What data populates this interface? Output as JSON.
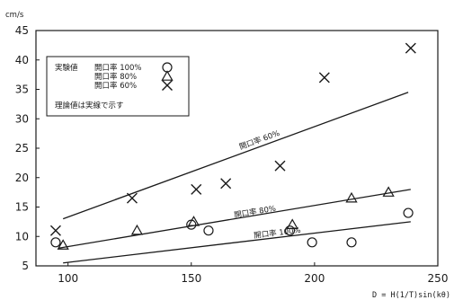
{
  "chart_data": {
    "type": "scatter",
    "title": "",
    "ylabel": "cm/s",
    "xlabel": "D = H(1/T)sin(kθ)",
    "xlim": [
      87,
      250
    ],
    "ylim": [
      5,
      45
    ],
    "x_ticks": [
      "100",
      "150",
      "200",
      "250"
    ],
    "y_ticks": [
      "5",
      "10",
      "15",
      "20",
      "25",
      "30",
      "35",
      "40",
      "45"
    ],
    "grid": false,
    "legend_position": "top-left",
    "legend": {
      "header": "実験値",
      "entries": [
        {
          "label": "開口率 100%",
          "marker": "circle"
        },
        {
          "label": "開口率 80%",
          "marker": "triangle"
        },
        {
          "label": "開口率 60%",
          "marker": "cross"
        }
      ],
      "note": "理論値は実線で示す"
    },
    "series": [
      {
        "name": "開口率 100%",
        "marker": "circle",
        "points": [
          [
            95,
            9
          ],
          [
            150,
            12
          ],
          [
            157,
            11
          ],
          [
            190,
            11
          ],
          [
            199,
            9
          ],
          [
            215,
            9
          ],
          [
            238,
            14
          ]
        ]
      },
      {
        "name": "開口率 80%",
        "marker": "triangle",
        "points": [
          [
            98,
            8.5
          ],
          [
            128,
            11
          ],
          [
            151,
            12.5
          ],
          [
            191,
            12
          ],
          [
            215,
            16.5
          ],
          [
            230,
            17.5
          ]
        ]
      },
      {
        "name": "開口率 60%",
        "marker": "cross",
        "points": [
          [
            95,
            11
          ],
          [
            126,
            16.5
          ],
          [
            152,
            18
          ],
          [
            164,
            19
          ],
          [
            186,
            22
          ],
          [
            204,
            37
          ],
          [
            239,
            42
          ]
        ]
      }
    ],
    "theory_lines": [
      {
        "label": "開口率 60%",
        "from": [
          98,
          13
        ],
        "to": [
          238,
          34.5
        ],
        "label_at": [
          178,
          26
        ]
      },
      {
        "label": "開口率 80%",
        "from": [
          96,
          8
        ],
        "to": [
          239,
          18
        ],
        "label_at": [
          176,
          13.8
        ]
      },
      {
        "label": "開口率 100%",
        "from": [
          98,
          5.5
        ],
        "to": [
          239,
          12.5
        ],
        "label_at": [
          185,
          10.2
        ]
      }
    ]
  }
}
